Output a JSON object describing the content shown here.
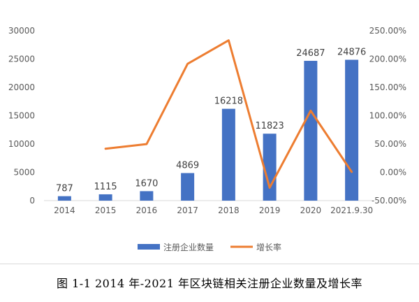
{
  "caption": "图 1-1 2014 年-2021 年区块链相关注册企业数量及增长率",
  "colors": {
    "bar": "#4472c4",
    "line": "#ed7d31",
    "text": "#595959",
    "axis": "#d9d9d9"
  },
  "chart_data": {
    "type": "bar",
    "categories": [
      "2014",
      "2015",
      "2016",
      "2017",
      "2018",
      "2019",
      "2020",
      "2021.9.30"
    ],
    "series": [
      {
        "name": "注册企业数量",
        "type": "bar",
        "axis": "left",
        "values": [
          787,
          1115,
          1670,
          4869,
          16218,
          11823,
          24687,
          24876
        ],
        "data_labels": [
          "787",
          "1115",
          "1670",
          "4869",
          "16218",
          "11823",
          "24687",
          "24876"
        ]
      },
      {
        "name": "增长率",
        "type": "line",
        "axis": "right",
        "values": [
          null,
          41.7,
          49.8,
          191.6,
          233.1,
          -27.1,
          108.8,
          0.8
        ]
      }
    ],
    "y_left": {
      "ylim": [
        0,
        30000
      ],
      "ticks": [
        0,
        5000,
        10000,
        15000,
        20000,
        25000,
        30000
      ],
      "tick_labels": [
        "0",
        "5000",
        "10000",
        "15000",
        "20000",
        "25000",
        "30000"
      ]
    },
    "y_right": {
      "ylim": [
        -50,
        250
      ],
      "ticks": [
        -50,
        0,
        50,
        100,
        150,
        200,
        250
      ],
      "tick_labels": [
        "-50.00%",
        "0.00%",
        "50.00%",
        "100.00%",
        "150.00%",
        "200.00%",
        "250.00%"
      ]
    },
    "legend_position": "bottom",
    "grid": false
  }
}
